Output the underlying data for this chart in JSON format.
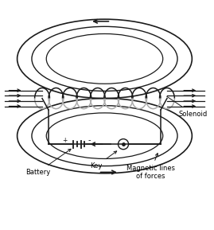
{
  "background_color": "#ffffff",
  "labels": {
    "battery": "Battery",
    "key": "Key",
    "magnetic_lines": "Magnetic lines\nof forces",
    "solenoid": "Solenoid"
  },
  "colors": {
    "lines": "#1a1a1a",
    "solenoid_coil_back": "#aaaaaa",
    "solenoid_coil_front": "#1a1a1a",
    "background": "#ffffff"
  },
  "figsize": [
    2.69,
    2.89
  ],
  "dpi": 100
}
